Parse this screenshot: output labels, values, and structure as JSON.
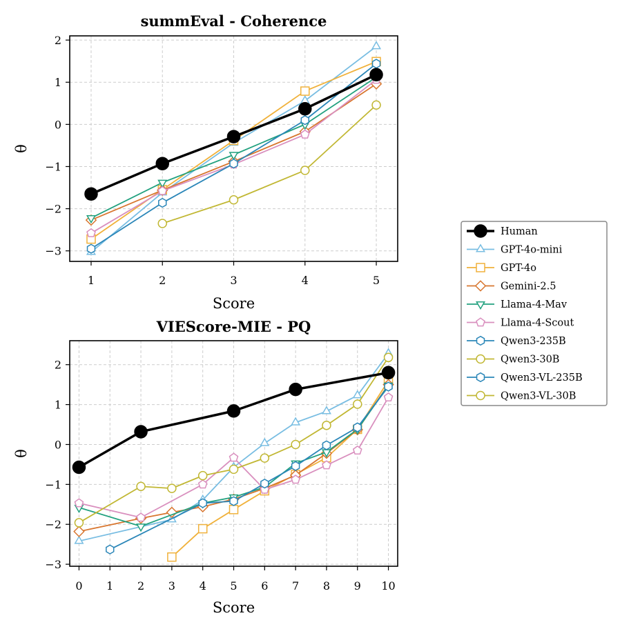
{
  "colors": {
    "Human": "#000000",
    "GPT-4o-mini": "#78bde2",
    "GPT-4o": "#f0b13a",
    "Gemini-2.5": "#d8762f",
    "Llama-4-Mav": "#22a17f",
    "Llama-4-Scout": "#d98fbe",
    "Qwen3-235B": "#2a86b8",
    "Qwen3-30B": "#c1b733",
    "Qwen3-VL-235B": "#2a86b8",
    "Qwen3-VL-30B": "#c1b733"
  },
  "legend": {
    "entries": [
      {
        "name": "Human",
        "marker": "circle-filled"
      },
      {
        "name": "GPT-4o-mini",
        "marker": "triangle-up"
      },
      {
        "name": "GPT-4o",
        "marker": "square"
      },
      {
        "name": "Gemini-2.5",
        "marker": "diamond"
      },
      {
        "name": "Llama-4-Mav",
        "marker": "triangle-down"
      },
      {
        "name": "Llama-4-Scout",
        "marker": "pentagon"
      },
      {
        "name": "Qwen3-235B",
        "marker": "hexagon"
      },
      {
        "name": "Qwen3-30B",
        "marker": "circle"
      },
      {
        "name": "Qwen3-VL-235B",
        "marker": "hexagon"
      },
      {
        "name": "Qwen3-VL-30B",
        "marker": "circle"
      }
    ]
  },
  "chart_data": [
    {
      "type": "line",
      "title": "summEval - Coherence",
      "xlabel": "Score",
      "ylabel": "θ",
      "xlim": [
        0.7,
        5.3
      ],
      "ylim": [
        -3.25,
        2.1
      ],
      "xticks": [
        1,
        2,
        3,
        4,
        5
      ],
      "xtick_labels": [
        "1",
        "2",
        "3",
        "4",
        "5"
      ],
      "yticks": [
        -3,
        -2,
        -1,
        0,
        1,
        2
      ],
      "ytick_labels": [
        "−3",
        "−2",
        "−1",
        "0",
        "1",
        "2"
      ],
      "grid": true,
      "series": [
        {
          "name": "GPT-4o-mini",
          "x": [
            1,
            2,
            3,
            4,
            5
          ],
          "y": [
            -3.03,
            -1.62,
            -0.44,
            0.56,
            1.85
          ]
        },
        {
          "name": "GPT-4o",
          "x": [
            1,
            2,
            3,
            4,
            5
          ],
          "y": [
            -2.72,
            -1.55,
            -0.38,
            0.79,
            1.49
          ]
        },
        {
          "name": "Gemini-2.5",
          "x": [
            1,
            2,
            3,
            4,
            5
          ],
          "y": [
            -2.27,
            -1.56,
            -0.88,
            -0.17,
            0.96
          ]
        },
        {
          "name": "Llama-4-Mav",
          "x": [
            1,
            2,
            3,
            4,
            5
          ],
          "y": [
            -2.22,
            -1.38,
            -0.72,
            0.0,
            1.12
          ]
        },
        {
          "name": "Llama-4-Scout",
          "x": [
            1,
            2,
            3,
            4,
            5
          ],
          "y": [
            -2.58,
            -1.58,
            -0.95,
            -0.24,
            1.06
          ]
        },
        {
          "name": "Qwen3-235B",
          "x": [
            1,
            2,
            3,
            4,
            5
          ],
          "y": [
            -2.95,
            -1.86,
            -0.93,
            0.1,
            1.44
          ]
        },
        {
          "name": "Qwen3-30B",
          "x": [
            2,
            3,
            4,
            5
          ],
          "y": [
            -2.35,
            -1.79,
            -1.09,
            0.46
          ]
        },
        {
          "name": "Human",
          "x": [
            1,
            2,
            3,
            4,
            5
          ],
          "y": [
            -1.65,
            -0.93,
            -0.29,
            0.37,
            1.18
          ]
        }
      ]
    },
    {
      "type": "line",
      "title": "VIEScore-MIE - PQ",
      "xlabel": "Score",
      "ylabel": "θ",
      "xlim": [
        -0.3,
        10.3
      ],
      "ylim": [
        -3.05,
        2.6
      ],
      "xticks": [
        0,
        1,
        2,
        3,
        4,
        5,
        6,
        7,
        8,
        9,
        10
      ],
      "xtick_labels": [
        "0",
        "1",
        "2",
        "3",
        "4",
        "5",
        "6",
        "7",
        "8",
        "9",
        "10"
      ],
      "yticks": [
        -3,
        -2,
        -1,
        0,
        1,
        2
      ],
      "ytick_labels": [
        "−3",
        "−2",
        "−1",
        "0",
        "1",
        "2"
      ],
      "grid": true,
      "series": [
        {
          "name": "GPT-4o-mini",
          "x": [
            0,
            3,
            4,
            5,
            6,
            7,
            8,
            9,
            10
          ],
          "y": [
            -2.42,
            -1.88,
            -1.39,
            -0.57,
            0.03,
            0.55,
            0.83,
            1.23,
            2.28
          ]
        },
        {
          "name": "GPT-4o",
          "x": [
            3,
            4,
            5,
            6,
            7,
            8,
            9,
            10
          ],
          "y": [
            -2.82,
            -2.11,
            -1.63,
            -1.16,
            -0.75,
            -0.33,
            0.38,
            1.6
          ]
        },
        {
          "name": "Gemini-2.5",
          "x": [
            0,
            2,
            3,
            4,
            5,
            6,
            7,
            8,
            9,
            10
          ],
          "y": [
            -2.18,
            -1.85,
            -1.7,
            -1.56,
            -1.37,
            -1.1,
            -0.77,
            -0.22,
            0.37,
            1.5
          ]
        },
        {
          "name": "Llama-4-Mav",
          "x": [
            0,
            2,
            4,
            5,
            6,
            7,
            8,
            9,
            10
          ],
          "y": [
            -1.58,
            -2.05,
            -1.47,
            -1.32,
            -1.07,
            -0.47,
            -0.19,
            0.38,
            1.48
          ]
        },
        {
          "name": "Llama-4-Scout",
          "x": [
            0,
            2,
            4,
            5,
            6,
            7,
            8,
            9,
            10
          ],
          "y": [
            -1.47,
            -1.83,
            -1.0,
            -0.33,
            -1.13,
            -0.88,
            -0.52,
            -0.15,
            1.18
          ]
        },
        {
          "name": "Qwen3-VL-235B",
          "x": [
            1,
            4,
            5,
            6,
            7,
            8,
            9,
            10
          ],
          "y": [
            -2.63,
            -1.47,
            -1.42,
            -0.98,
            -0.54,
            -0.02,
            0.43,
            1.45
          ]
        },
        {
          "name": "Qwen3-VL-30B",
          "x": [
            0,
            2,
            3,
            4,
            5,
            6,
            7,
            8,
            9,
            10
          ],
          "y": [
            -1.96,
            -1.05,
            -1.1,
            -0.78,
            -0.62,
            -0.34,
            0.0,
            0.48,
            1.01,
            2.18
          ]
        },
        {
          "name": "Human",
          "x": [
            0,
            2,
            5,
            7,
            10
          ],
          "y": [
            -0.57,
            0.32,
            0.84,
            1.38,
            1.8
          ]
        }
      ]
    }
  ]
}
